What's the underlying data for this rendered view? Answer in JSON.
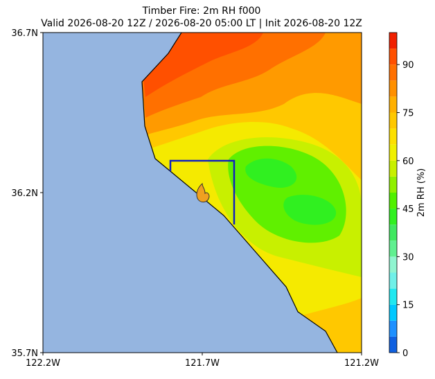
{
  "title": "Timber Fire: 2m RH f000",
  "subtitle": "Valid 2026-08-20 12Z / 2026-08-20 05:00 LT | Init 2026-08-20 12Z",
  "map": {
    "xlim": [
      -122.2,
      -121.2
    ],
    "ylim": [
      35.7,
      36.7
    ],
    "xticks": [
      {
        "value": -122.2,
        "label": "122.2W"
      },
      {
        "value": -121.7,
        "label": "121.7W"
      },
      {
        "value": -121.2,
        "label": "121.2W"
      }
    ],
    "yticks": [
      {
        "value": 35.7,
        "label": "35.7N"
      },
      {
        "value": 36.2,
        "label": "36.2N"
      },
      {
        "value": 36.7,
        "label": "36.7N"
      }
    ]
  },
  "colorbar": {
    "label": "2m RH (%)",
    "lim": [
      0,
      100
    ],
    "ticks": [
      0,
      15,
      30,
      45,
      60,
      75,
      90
    ],
    "levels": [
      0,
      5,
      10,
      15,
      20,
      25,
      30,
      35,
      40,
      45,
      50,
      55,
      60,
      65,
      70,
      75,
      80,
      85,
      90,
      95,
      100
    ],
    "colors": [
      "#1060e0",
      "#1e90ff",
      "#00c8ff",
      "#20e8f0",
      "#70f0e8",
      "#90f5d0",
      "#60f090",
      "#40e860",
      "#30f020",
      "#50f000",
      "#90f000",
      "#c8f000",
      "#f0f000",
      "#fde000",
      "#ffc800",
      "#ffb000",
      "#ff9000",
      "#ff7000",
      "#ff5000",
      "#f02000"
    ]
  }
}
